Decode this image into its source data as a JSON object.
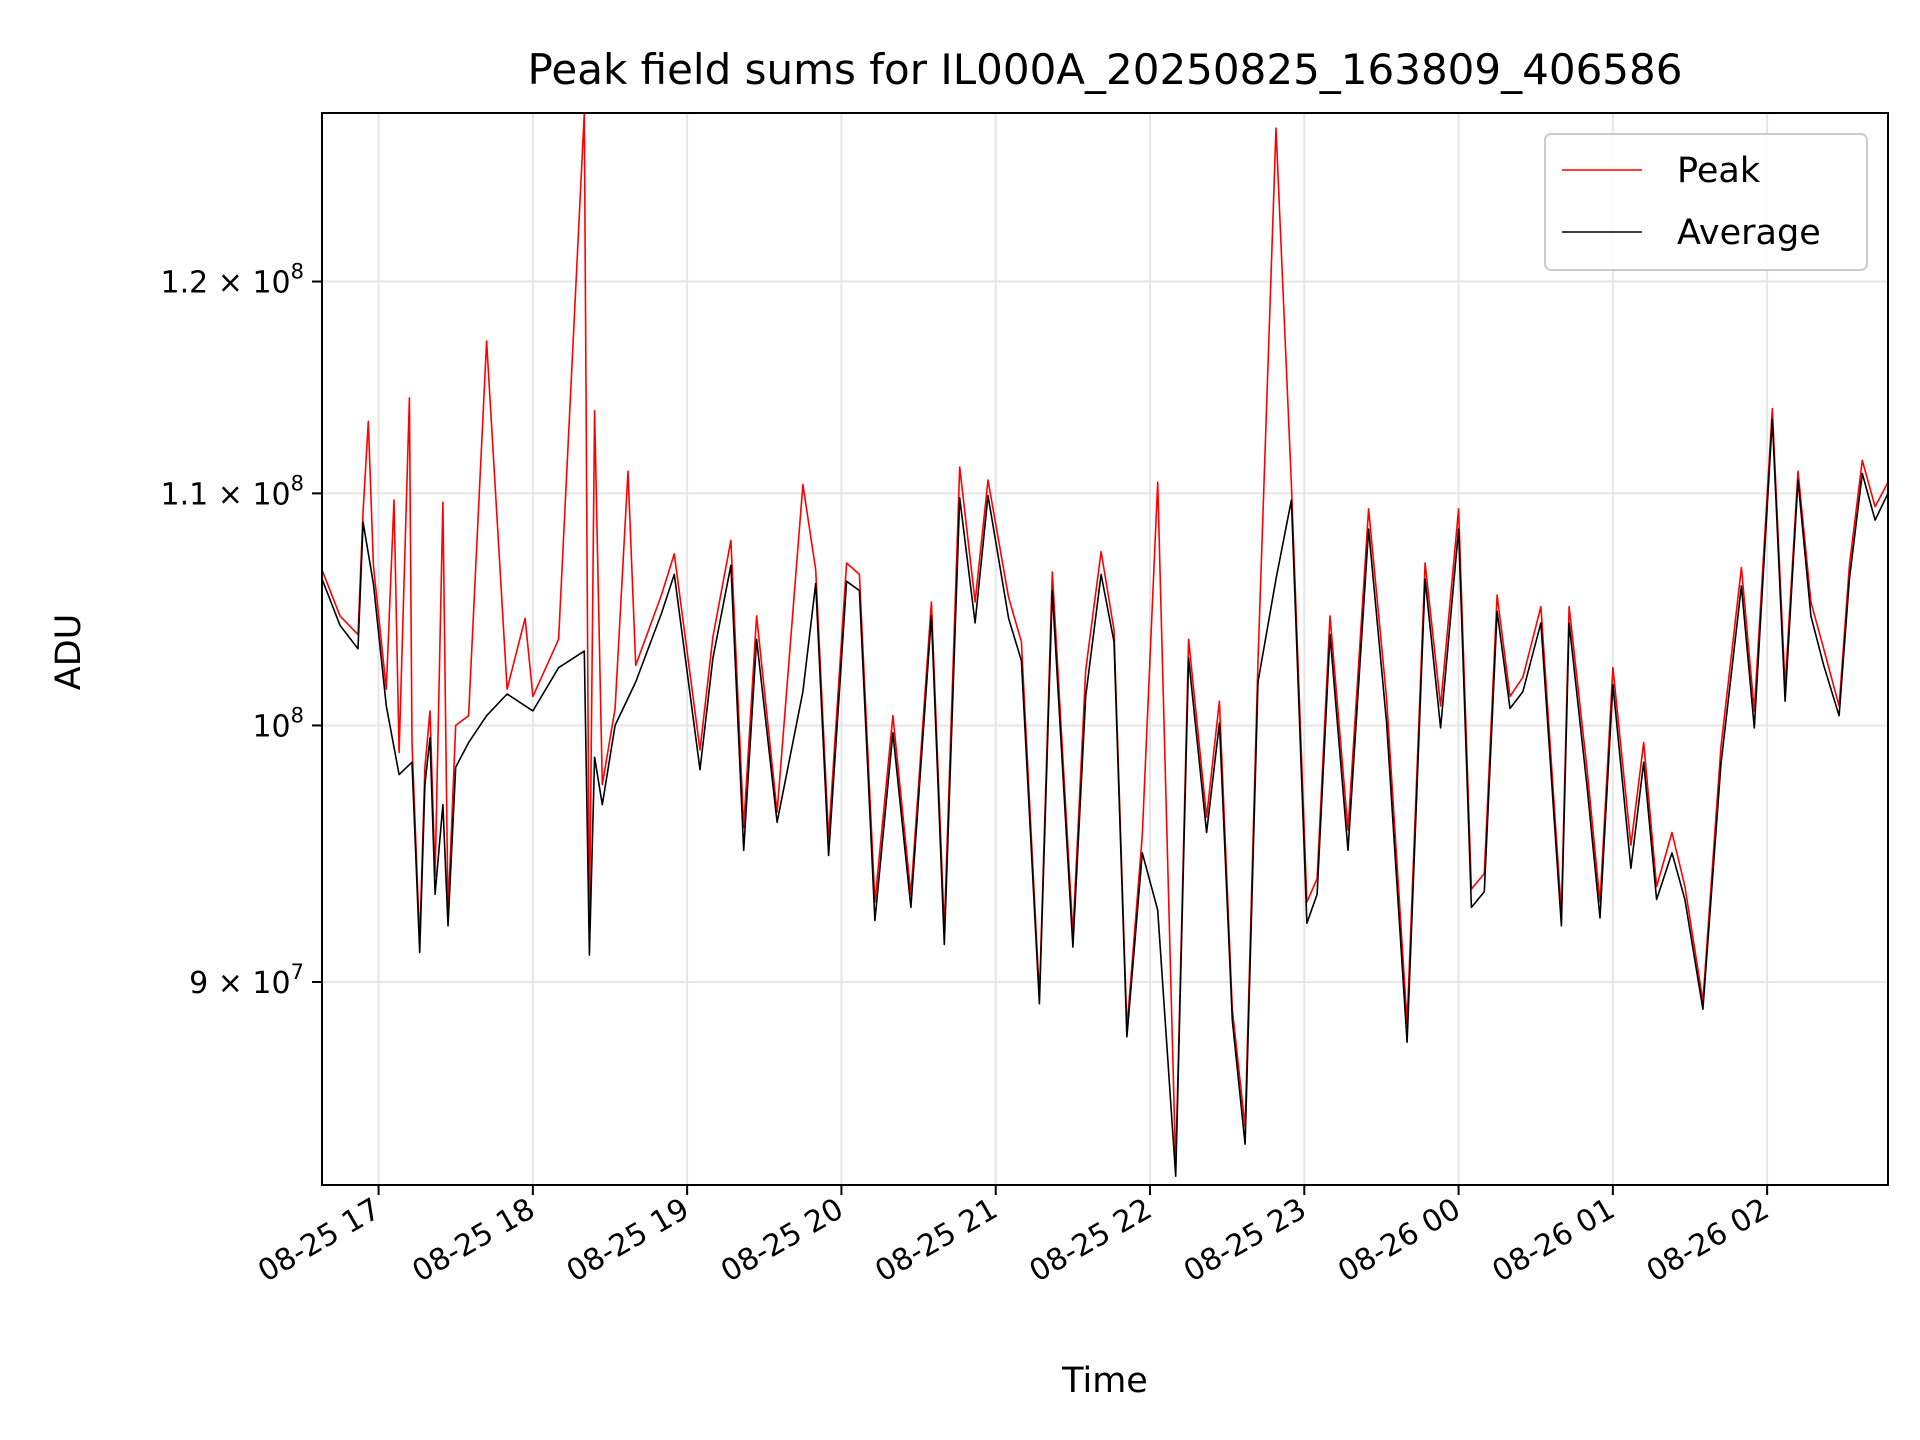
{
  "chart_data": {
    "type": "line",
    "title": "Peak field sums for IL000A_20250825_163809_406586",
    "xlabel": "Time",
    "ylabel": "ADU",
    "yscale": "log",
    "ylim": [
      82800000,
      128600000
    ],
    "xlim": [
      "2025-08-25 16:38",
      "2025-08-26 02:47"
    ],
    "x_ticks": [
      {
        "t": "2025-08-25 17:00",
        "label": "08-25 17"
      },
      {
        "t": "2025-08-25 18:00",
        "label": "08-25 18"
      },
      {
        "t": "2025-08-25 19:00",
        "label": "08-25 19"
      },
      {
        "t": "2025-08-25 20:00",
        "label": "08-25 20"
      },
      {
        "t": "2025-08-25 21:00",
        "label": "08-25 21"
      },
      {
        "t": "2025-08-25 22:00",
        "label": "08-25 22"
      },
      {
        "t": "2025-08-25 23:00",
        "label": "08-25 23"
      },
      {
        "t": "2025-08-26 00:00",
        "label": "08-26 00"
      },
      {
        "t": "2025-08-26 01:00",
        "label": "08-26 01"
      },
      {
        "t": "2025-08-26 02:00",
        "label": "08-26 02"
      }
    ],
    "y_ticks": [
      {
        "value": 90000000,
        "mant": "9",
        "sep": " × ",
        "exp": "7"
      },
      {
        "value": 100000000,
        "mant": "",
        "sep": "",
        "exp": "8"
      },
      {
        "value": 110000000,
        "mant": "1.1",
        "sep": " × ",
        "exp": "8"
      },
      {
        "value": 120000000,
        "mant": "1.2",
        "sep": " × ",
        "exp": "8"
      }
    ],
    "grid": true,
    "legend": {
      "position": "top-right"
    },
    "series": [
      {
        "name": "Average",
        "color": "#000000",
        "x": [
          "2025-08-25 16:38",
          "2025-08-25 16:45",
          "2025-08-25 16:52",
          "2025-08-25 16:54",
          "2025-08-25 16:58",
          "2025-08-25 17:03",
          "2025-08-25 17:08",
          "2025-08-25 17:13",
          "2025-08-25 17:16",
          "2025-08-25 17:18",
          "2025-08-25 17:20",
          "2025-08-25 17:22",
          "2025-08-25 17:25",
          "2025-08-25 17:27",
          "2025-08-25 17:30",
          "2025-08-25 17:35",
          "2025-08-25 17:42",
          "2025-08-25 17:50",
          "2025-08-25 18:00",
          "2025-08-25 18:10",
          "2025-08-25 18:20",
          "2025-08-25 18:22",
          "2025-08-25 18:24",
          "2025-08-25 18:27",
          "2025-08-25 18:32",
          "2025-08-25 18:40",
          "2025-08-25 18:50",
          "2025-08-25 18:55",
          "2025-08-25 19:05",
          "2025-08-25 19:10",
          "2025-08-25 19:17",
          "2025-08-25 19:22",
          "2025-08-25 19:27",
          "2025-08-25 19:35",
          "2025-08-25 19:45",
          "2025-08-25 19:50",
          "2025-08-25 19:55",
          "2025-08-25 20:02",
          "2025-08-25 20:07",
          "2025-08-25 20:13",
          "2025-08-25 20:20",
          "2025-08-25 20:27",
          "2025-08-25 20:35",
          "2025-08-25 20:40",
          "2025-08-25 20:46",
          "2025-08-25 20:52",
          "2025-08-25 20:57",
          "2025-08-25 21:05",
          "2025-08-25 21:10",
          "2025-08-25 21:17",
          "2025-08-25 21:22",
          "2025-08-25 21:30",
          "2025-08-25 21:35",
          "2025-08-25 21:41",
          "2025-08-25 21:46",
          "2025-08-25 21:51",
          "2025-08-25 21:57",
          "2025-08-25 22:03",
          "2025-08-25 22:10",
          "2025-08-25 22:15",
          "2025-08-25 22:22",
          "2025-08-25 22:27",
          "2025-08-25 22:32",
          "2025-08-25 22:37",
          "2025-08-25 22:42",
          "2025-08-25 22:49",
          "2025-08-25 22:55",
          "2025-08-25 23:01",
          "2025-08-25 23:05",
          "2025-08-25 23:10",
          "2025-08-25 23:17",
          "2025-08-25 23:25",
          "2025-08-25 23:32",
          "2025-08-25 23:40",
          "2025-08-25 23:47",
          "2025-08-25 23:53",
          "2025-08-26 00:00",
          "2025-08-26 00:05",
          "2025-08-26 00:10",
          "2025-08-26 00:15",
          "2025-08-26 00:20",
          "2025-08-26 00:25",
          "2025-08-26 00:32",
          "2025-08-26 00:40",
          "2025-08-26 00:43",
          "2025-08-26 00:50",
          "2025-08-26 00:55",
          "2025-08-26 01:00",
          "2025-08-26 01:07",
          "2025-08-26 01:12",
          "2025-08-26 01:17",
          "2025-08-26 01:23",
          "2025-08-26 01:28",
          "2025-08-26 01:35",
          "2025-08-26 01:42",
          "2025-08-26 01:50",
          "2025-08-26 01:55",
          "2025-08-26 02:02",
          "2025-08-26 02:07",
          "2025-08-26 02:12",
          "2025-08-26 02:17",
          "2025-08-26 02:22",
          "2025-08-26 02:28",
          "2025-08-26 02:32",
          "2025-08-26 02:37",
          "2025-08-26 02:42",
          "2025-08-26 02:47"
        ],
        "values": [
          106200000,
          104200000,
          103200000,
          108700000,
          106000000,
          100800000,
          98000000,
          98500000,
          91100000,
          97600000,
          99500000,
          93300000,
          96800000,
          92100000,
          98300000,
          99300000,
          100400000,
          101300000,
          100600000,
          102400000,
          103100000,
          91000000,
          98700000,
          96800000,
          100000000,
          101800000,
          104700000,
          106400000,
          98200000,
          102800000,
          106800000,
          95000000,
          103600000,
          96100000,
          101400000,
          106000000,
          94800000,
          106100000,
          105700000,
          92300000,
          99700000,
          92800000,
          104600000,
          91400000,
          109800000,
          104300000,
          109900000,
          104500000,
          102700000,
          89200000,
          105700000,
          91300000,
          101200000,
          106400000,
          103500000,
          88000000,
          94900000,
          92700000,
          83100000,
          102800000,
          95700000,
          100100000,
          88600000,
          84200000,
          101800000,
          106200000,
          109700000,
          92200000,
          93300000,
          103800000,
          95000000,
          108400000,
          100100000,
          87800000,
          106200000,
          99900000,
          108400000,
          92800000,
          93400000,
          104800000,
          100700000,
          101400000,
          104300000,
          92100000,
          104300000,
          97500000,
          92400000,
          101700000,
          94300000,
          98500000,
          93100000,
          94900000,
          93100000,
          89000000,
          98400000,
          105900000,
          99900000,
          113400000,
          101000000,
          110600000,
          104600000,
          102500000,
          100400000,
          106200000,
          110900000,
          108800000,
          110000000
        ]
      },
      {
        "name": "Peak",
        "color": "#ff0000",
        "x": [
          "2025-08-25 16:38",
          "2025-08-25 16:45",
          "2025-08-25 16:52",
          "2025-08-25 16:54",
          "2025-08-25 16:56",
          "2025-08-25 16:58",
          "2025-08-25 17:03",
          "2025-08-25 17:06",
          "2025-08-25 17:08",
          "2025-08-25 17:12",
          "2025-08-25 17:13",
          "2025-08-25 17:16",
          "2025-08-25 17:18",
          "2025-08-25 17:20",
          "2025-08-25 17:22",
          "2025-08-25 17:25",
          "2025-08-25 17:27",
          "2025-08-25 17:30",
          "2025-08-25 17:35",
          "2025-08-25 17:42",
          "2025-08-25 17:50",
          "2025-08-25 17:57",
          "2025-08-25 18:00",
          "2025-08-25 18:10",
          "2025-08-25 18:20",
          "2025-08-25 18:22",
          "2025-08-25 18:24",
          "2025-08-25 18:27",
          "2025-08-25 18:32",
          "2025-08-25 18:37",
          "2025-08-25 18:40",
          "2025-08-25 18:50",
          "2025-08-25 18:55",
          "2025-08-25 19:05",
          "2025-08-25 19:10",
          "2025-08-25 19:17",
          "2025-08-25 19:22",
          "2025-08-25 19:27",
          "2025-08-25 19:35",
          "2025-08-25 19:45",
          "2025-08-25 19:50",
          "2025-08-25 19:55",
          "2025-08-25 20:02",
          "2025-08-25 20:07",
          "2025-08-25 20:13",
          "2025-08-25 20:20",
          "2025-08-25 20:27",
          "2025-08-25 20:35",
          "2025-08-25 20:40",
          "2025-08-25 20:46",
          "2025-08-25 20:52",
          "2025-08-25 20:57",
          "2025-08-25 21:05",
          "2025-08-25 21:10",
          "2025-08-25 21:17",
          "2025-08-25 21:22",
          "2025-08-25 21:30",
          "2025-08-25 21:35",
          "2025-08-25 21:41",
          "2025-08-25 21:46",
          "2025-08-25 21:51",
          "2025-08-25 21:57",
          "2025-08-25 22:03",
          "2025-08-25 22:10",
          "2025-08-25 22:15",
          "2025-08-25 22:22",
          "2025-08-25 22:27",
          "2025-08-25 22:32",
          "2025-08-25 22:37",
          "2025-08-25 22:42",
          "2025-08-25 22:49",
          "2025-08-25 22:55",
          "2025-08-25 23:01",
          "2025-08-25 23:05",
          "2025-08-25 23:10",
          "2025-08-25 23:17",
          "2025-08-25 23:25",
          "2025-08-25 23:32",
          "2025-08-25 23:40",
          "2025-08-25 23:47",
          "2025-08-25 23:53",
          "2025-08-26 00:00",
          "2025-08-26 00:05",
          "2025-08-26 00:10",
          "2025-08-26 00:15",
          "2025-08-26 00:20",
          "2025-08-26 00:25",
          "2025-08-26 00:32",
          "2025-08-26 00:40",
          "2025-08-26 00:43",
          "2025-08-26 00:50",
          "2025-08-26 00:55",
          "2025-08-26 01:00",
          "2025-08-26 01:07",
          "2025-08-26 01:12",
          "2025-08-26 01:17",
          "2025-08-26 01:23",
          "2025-08-26 01:28",
          "2025-08-26 01:35",
          "2025-08-26 01:42",
          "2025-08-26 01:50",
          "2025-08-26 01:55",
          "2025-08-26 02:02",
          "2025-08-26 02:07",
          "2025-08-26 02:12",
          "2025-08-26 02:17",
          "2025-08-26 02:22",
          "2025-08-26 02:28",
          "2025-08-26 02:32",
          "2025-08-26 02:37",
          "2025-08-26 02:42",
          "2025-08-26 02:47"
        ],
        "values": [
          106600000,
          104600000,
          103800000,
          109200000,
          113300000,
          106800000,
          101500000,
          109700000,
          98900000,
          114400000,
          99300000,
          91500000,
          98300000,
          100600000,
          94000000,
          109600000,
          92600000,
          100000000,
          100400000,
          117100000,
          101500000,
          104500000,
          101200000,
          103600000,
          128600000,
          91800000,
          113800000,
          97600000,
          100700000,
          111000000,
          102500000,
          105500000,
          107300000,
          99000000,
          103700000,
          107900000,
          95900000,
          104600000,
          96500000,
          110400000,
          106600000,
          95500000,
          106900000,
          106400000,
          93000000,
          100400000,
          93300000,
          105200000,
          92000000,
          111200000,
          105200000,
          110600000,
          105400000,
          103500000,
          89500000,
          106500000,
          91800000,
          102300000,
          107400000,
          104000000,
          88300000,
          95600000,
          110500000,
          83400000,
          103600000,
          96300000,
          101000000,
          89000000,
          84800000,
          102700000,
          127800000,
          110400000,
          93000000,
          93900000,
          104600000,
          95800000,
          109300000,
          101100000,
          88500000,
          106900000,
          100800000,
          109300000,
          93500000,
          94100000,
          105500000,
          101200000,
          102000000,
          105000000,
          92600000,
          105000000,
          98200000,
          93000000,
          102400000,
          95200000,
          99300000,
          93600000,
          95700000,
          93600000,
          89300000,
          99100000,
          106700000,
          100600000,
          113900000,
          101600000,
          111000000,
          105200000,
          103200000,
          100800000,
          106800000,
          111500000,
          109400000,
          110500000
        ]
      }
    ]
  }
}
